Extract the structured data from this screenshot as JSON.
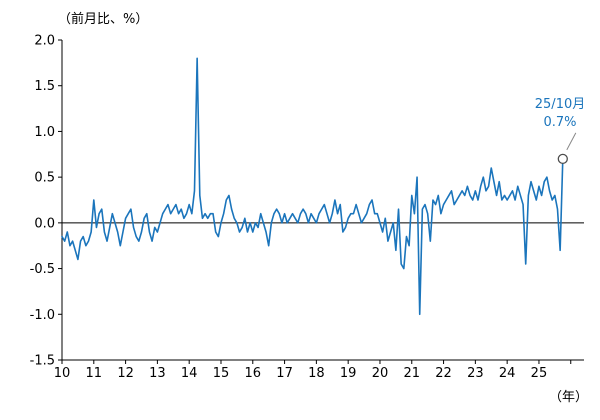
{
  "chart": {
    "y_unit_label": "（前月比、%）",
    "x_unit_label": "（年）"
  },
  "chart_data": {
    "type": "line",
    "title": "",
    "xlabel": "（年）",
    "ylabel": "（前月比、%）",
    "ylim": [
      -1.5,
      2.0
    ],
    "ytick_values": [
      2.0,
      1.5,
      1.0,
      0.5,
      0.0,
      -0.5,
      -1.0,
      -1.5
    ],
    "ytick_labels": [
      "2.0",
      "1.5",
      "1.0",
      "0.5",
      "0.0",
      "-0.5",
      "-1.0",
      "-1.5"
    ],
    "xticklabels": [
      "10",
      "11",
      "12",
      "13",
      "14",
      "15",
      "16",
      "17",
      "18",
      "19",
      "20",
      "21",
      "22",
      "23",
      "24",
      "25"
    ],
    "x_start": "2010-01",
    "x_end": "2025-10",
    "x_domain_months": 198,
    "grid": false,
    "legend": false,
    "zero_line": true,
    "line_color": "#1b75bc",
    "series": [
      {
        "name": "前月比",
        "color": "#1b75bc",
        "values": [
          -0.15,
          -0.2,
          -0.1,
          -0.25,
          -0.2,
          -0.3,
          -0.4,
          -0.2,
          -0.15,
          -0.25,
          -0.2,
          -0.1,
          0.25,
          -0.05,
          0.1,
          0.15,
          -0.1,
          -0.2,
          -0.05,
          0.1,
          0.0,
          -0.1,
          -0.25,
          -0.1,
          0.05,
          0.1,
          0.15,
          -0.05,
          -0.15,
          -0.2,
          -0.1,
          0.05,
          0.1,
          -0.1,
          -0.2,
          -0.05,
          -0.1,
          0.0,
          0.1,
          0.15,
          0.2,
          0.1,
          0.15,
          0.2,
          0.1,
          0.15,
          0.05,
          0.1,
          0.2,
          0.1,
          0.35,
          1.8,
          0.3,
          0.05,
          0.1,
          0.05,
          0.1,
          0.1,
          -0.1,
          -0.15,
          0.0,
          0.1,
          0.25,
          0.3,
          0.15,
          0.05,
          0.0,
          -0.1,
          -0.05,
          0.05,
          -0.1,
          0.0,
          -0.1,
          0.0,
          -0.05,
          0.1,
          0.0,
          -0.1,
          -0.25,
          0.0,
          0.1,
          0.15,
          0.1,
          0.0,
          0.1,
          0.0,
          0.05,
          0.1,
          0.05,
          0.0,
          0.1,
          0.15,
          0.1,
          0.0,
          0.1,
          0.05,
          0.0,
          0.1,
          0.15,
          0.2,
          0.1,
          0.0,
          0.1,
          0.25,
          0.1,
          0.2,
          -0.1,
          -0.05,
          0.05,
          0.1,
          0.1,
          0.2,
          0.1,
          0.0,
          0.05,
          0.1,
          0.2,
          0.25,
          0.1,
          0.1,
          0.0,
          -0.1,
          0.05,
          -0.2,
          -0.1,
          0.0,
          -0.3,
          0.15,
          -0.45,
          -0.5,
          -0.15,
          -0.25,
          0.3,
          0.1,
          0.5,
          -1.0,
          0.15,
          0.2,
          0.1,
          -0.2,
          0.25,
          0.2,
          0.3,
          0.1,
          0.2,
          0.25,
          0.3,
          0.35,
          0.2,
          0.25,
          0.3,
          0.35,
          0.3,
          0.4,
          0.3,
          0.25,
          0.35,
          0.25,
          0.4,
          0.5,
          0.35,
          0.4,
          0.6,
          0.45,
          0.3,
          0.45,
          0.25,
          0.3,
          0.25,
          0.3,
          0.35,
          0.25,
          0.4,
          0.3,
          0.2,
          -0.45,
          0.3,
          0.45,
          0.35,
          0.25,
          0.4,
          0.3,
          0.45,
          0.5,
          0.35,
          0.25,
          0.3,
          0.15,
          -0.3,
          0.7
        ]
      }
    ],
    "annotation": {
      "label": "25/10月",
      "value_label": "0.7%",
      "x": "2025-10",
      "y": 0.7,
      "marker": "open-circle",
      "color": "#1b75bc"
    }
  }
}
